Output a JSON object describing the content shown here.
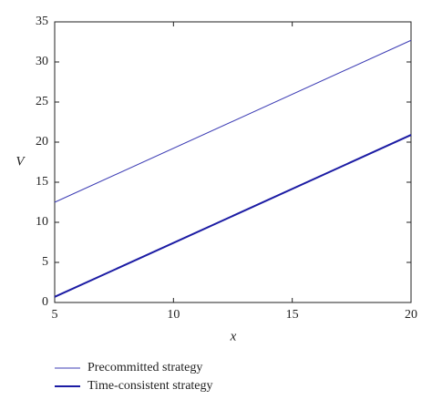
{
  "chart_data": {
    "type": "line",
    "x_label": "x",
    "y_label": "V",
    "x": [
      5,
      20
    ],
    "series": [
      {
        "name": "Precommitted strategy",
        "color": "#3c3cb4",
        "width": 1,
        "values": [
          12.5,
          32.7
        ]
      },
      {
        "name": "Time-consistent strategy",
        "color": "#1c1ca4",
        "width": 2,
        "values": [
          0.7,
          20.9
        ]
      }
    ],
    "xlim": [
      5,
      20
    ],
    "xticks": [
      5,
      10,
      15,
      20
    ],
    "ylim": [
      0,
      35
    ],
    "yticks": [
      0,
      5,
      10,
      15,
      20,
      25,
      30,
      35
    ],
    "grid": false,
    "legend": "bottom-left"
  }
}
